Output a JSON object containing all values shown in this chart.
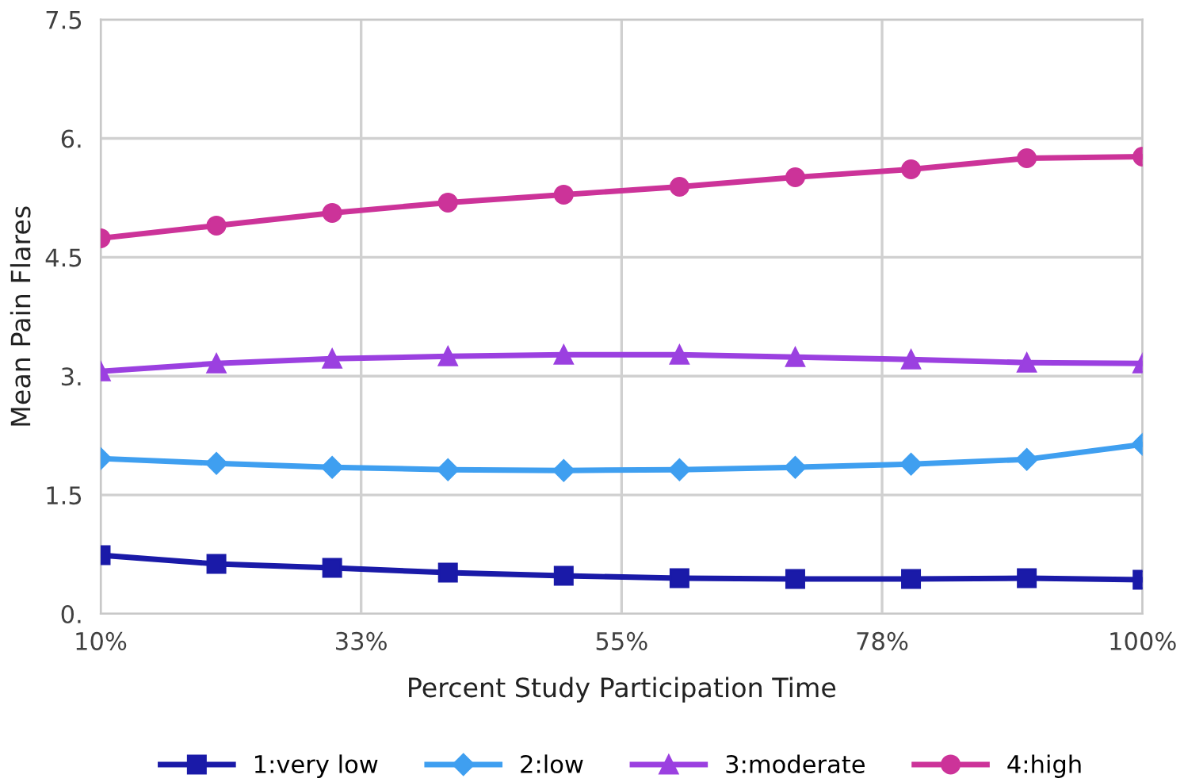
{
  "chart_data": {
    "type": "line",
    "xlabel": "Percent Study Participation Time",
    "ylabel": "Mean Pain Flares",
    "x": [
      10,
      20,
      30,
      40,
      50,
      60,
      70,
      80,
      90,
      100
    ],
    "xlim": [
      10,
      100
    ],
    "xticks": [
      {
        "value": 10,
        "label": "10%"
      },
      {
        "value": 32.5,
        "label": "33%"
      },
      {
        "value": 55,
        "label": "55%"
      },
      {
        "value": 77.5,
        "label": "78%"
      },
      {
        "value": 100,
        "label": "100%"
      }
    ],
    "ylim": [
      0,
      7.5
    ],
    "yticks": [
      {
        "value": 0,
        "label": "0."
      },
      1.5,
      {
        "value": 3,
        "label": "3."
      },
      4.5,
      {
        "value": 6,
        "label": "6."
      },
      7.5
    ],
    "grid": true,
    "legend": "bottom",
    "line_style": "solid",
    "series": [
      {
        "name": "1:very low",
        "color": "#1a1aa8",
        "marker": "square",
        "values": [
          0.74,
          0.63,
          0.58,
          0.52,
          0.48,
          0.45,
          0.44,
          0.44,
          0.45,
          0.43
        ]
      },
      {
        "name": "2:low",
        "color": "#3f9ff0",
        "marker": "diamond",
        "values": [
          1.96,
          1.9,
          1.85,
          1.82,
          1.81,
          1.82,
          1.85,
          1.89,
          1.95,
          2.14
        ]
      },
      {
        "name": "3:moderate",
        "color": "#9b40e0",
        "marker": "triangle",
        "values": [
          3.06,
          3.16,
          3.22,
          3.25,
          3.27,
          3.27,
          3.24,
          3.21,
          3.17,
          3.16
        ]
      },
      {
        "name": "4:high",
        "color": "#cc3399",
        "marker": "circle",
        "values": [
          4.74,
          4.9,
          5.06,
          5.19,
          5.29,
          5.39,
          5.51,
          5.61,
          5.75,
          5.77
        ]
      }
    ]
  }
}
